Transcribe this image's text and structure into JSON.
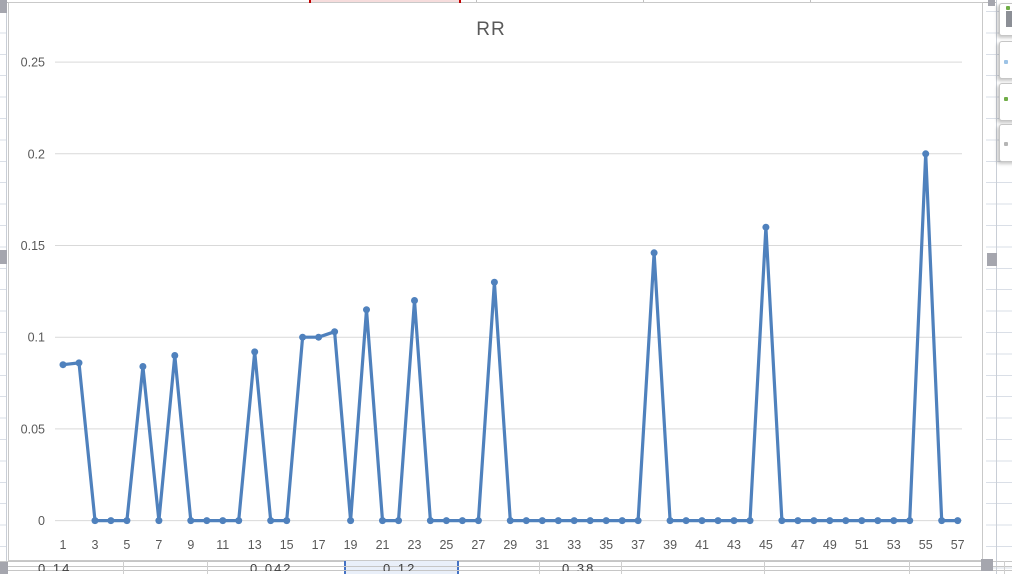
{
  "app": {
    "context": "spreadsheet worksheet with embedded chart selected"
  },
  "chart_data": {
    "type": "line",
    "title": "RR",
    "series_name": "RR",
    "x": [
      1,
      2,
      3,
      4,
      5,
      6,
      7,
      8,
      9,
      10,
      11,
      12,
      13,
      14,
      15,
      16,
      17,
      18,
      19,
      20,
      21,
      22,
      23,
      24,
      25,
      26,
      27,
      28,
      29,
      30,
      31,
      32,
      33,
      34,
      35,
      36,
      37,
      38,
      39,
      40,
      41,
      42,
      43,
      44,
      45,
      46,
      47,
      48,
      49,
      50,
      51,
      52,
      53,
      54,
      55,
      56,
      57
    ],
    "values": [
      0.085,
      0.086,
      0,
      0,
      0,
      0.084,
      0,
      0.09,
      0,
      0,
      0,
      0,
      0.092,
      0,
      0,
      0.1,
      0.1,
      0.103,
      0,
      0.115,
      0,
      0,
      0.12,
      0,
      0,
      0,
      0,
      0.13,
      0,
      0,
      0,
      0,
      0,
      0,
      0,
      0,
      0,
      0.146,
      0,
      0,
      0,
      0,
      0,
      0,
      0.16,
      0,
      0,
      0,
      0,
      0,
      0,
      0,
      0,
      0,
      0.2,
      0,
      0
    ],
    "xlabel": "",
    "ylabel": "",
    "ylim": [
      0,
      0.25
    ],
    "ytick_labels": [
      "0",
      "0.05",
      "0.1",
      "0.15",
      "0.2",
      "0.25"
    ],
    "xtick_labels": [
      "1",
      "3",
      "5",
      "7",
      "9",
      "11",
      "13",
      "15",
      "17",
      "19",
      "21",
      "23",
      "25",
      "27",
      "29",
      "31",
      "33",
      "35",
      "37",
      "39",
      "41",
      "43",
      "45",
      "47",
      "49",
      "51",
      "53",
      "55",
      "57"
    ],
    "grid": true,
    "legend": "none",
    "marker": "circle"
  },
  "colors": {
    "series": "#4F81BD",
    "gridline": "#D9D9D9",
    "axis_text": "#595959",
    "title_text": "#595959",
    "chart_border": "#C9C9C9",
    "worksheet_gridline": "#DADFE7",
    "selection_handle": "#A5A6AE",
    "selected_cell_fill": "#E9EFF9",
    "selected_cell_border": "#4472C4",
    "highlight_cell_fill": "#F6DCDC",
    "highlight_cell_border": "#C00000"
  },
  "worksheet": {
    "bottom_row_partial_values": [
      {
        "text": "0.14",
        "selected": false
      },
      {
        "text": "0.042",
        "selected": false
      },
      {
        "text": "0.12",
        "selected": true
      },
      {
        "text": "0.38",
        "selected": false
      }
    ]
  },
  "side_buttons": [
    {
      "icon": "chart-quick-button-1"
    },
    {
      "icon": "chart-quick-button-2"
    },
    {
      "icon": "chart-quick-button-3"
    },
    {
      "icon": "chart-quick-button-4"
    }
  ]
}
